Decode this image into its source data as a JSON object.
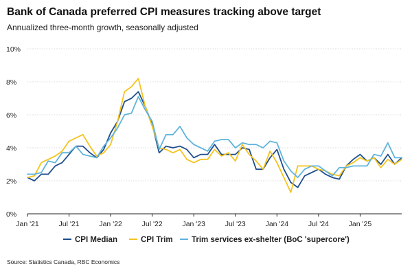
{
  "header": {
    "title": "Bank of Canada preferred CPI measures tracking above target",
    "subtitle": "Annualized three-month growth, seasonally adjusted"
  },
  "footer": {
    "source": "Source: Statistics Canada, RBC Economics"
  },
  "chart_data": {
    "type": "line",
    "title": "Bank of Canada preferred CPI measures tracking above target",
    "subtitle": "Annualized three-month growth, seasonally adjusted",
    "xlabel": "",
    "ylabel": "",
    "ylim": [
      0,
      10
    ],
    "yticks": [
      "0%",
      "2%",
      "4%",
      "6%",
      "8%",
      "10%"
    ],
    "ytick_values": [
      0,
      2,
      4,
      6,
      8,
      10
    ],
    "grid": true,
    "legend_position": "bottom",
    "x": [
      "Jan '21",
      "Feb '21",
      "Mar '21",
      "Apr '21",
      "May '21",
      "Jun '21",
      "Jul '21",
      "Aug '21",
      "Sep '21",
      "Oct '21",
      "Nov '21",
      "Dec '21",
      "Jan '22",
      "Feb '22",
      "Mar '22",
      "Apr '22",
      "May '22",
      "Jun '22",
      "Jul '22",
      "Aug '22",
      "Sep '22",
      "Oct '22",
      "Nov '22",
      "Dec '22",
      "Jan '23",
      "Feb '23",
      "Mar '23",
      "Apr '23",
      "May '23",
      "Jun '23",
      "Jul '23",
      "Aug '23",
      "Sep '23",
      "Oct '23",
      "Nov '23",
      "Dec '23",
      "Jan '24",
      "Feb '24",
      "Mar '24",
      "Apr '24",
      "May '24",
      "Jun '24",
      "Jul '24",
      "Aug '24",
      "Sep '24",
      "Oct '24",
      "Nov '24",
      "Dec '24",
      "Jan '25",
      "Feb '25",
      "Mar '25",
      "Apr '25",
      "May '25",
      "Jun '25",
      "Jul '25"
    ],
    "xtick_labels": [
      {
        "label": "Jan '21",
        "index": 0
      },
      {
        "label": "Jul '21",
        "index": 6
      },
      {
        "label": "Jan '22",
        "index": 12
      },
      {
        "label": "Jul '22",
        "index": 18
      },
      {
        "label": "Jan '23",
        "index": 24
      },
      {
        "label": "Jul '23",
        "index": 30
      },
      {
        "label": "Jan '24",
        "index": 36
      },
      {
        "label": "Jul '24",
        "index": 42
      },
      {
        "label": "Jan '25",
        "index": 48
      }
    ],
    "series": [
      {
        "name": "CPI Median",
        "color": "#1f4e8c",
        "values": [
          2.2,
          2.0,
          2.4,
          2.4,
          2.9,
          3.1,
          3.6,
          4.1,
          4.1,
          3.7,
          3.4,
          3.9,
          4.9,
          5.6,
          6.8,
          7.0,
          7.4,
          6.5,
          5.4,
          3.7,
          4.1,
          4.0,
          4.1,
          3.9,
          3.4,
          3.6,
          3.6,
          4.2,
          3.6,
          3.6,
          3.6,
          4.0,
          3.9,
          2.7,
          2.7,
          3.4,
          3.9,
          2.7,
          1.9,
          1.6,
          2.3,
          2.5,
          2.7,
          2.4,
          2.2,
          2.1,
          2.9,
          3.3,
          3.6,
          3.2,
          3.4,
          3.0,
          3.6,
          3.0,
          3.4
        ]
      },
      {
        "name": "CPI Trim",
        "color": "#f5c31d",
        "values": [
          2.2,
          2.3,
          3.1,
          3.3,
          3.5,
          3.8,
          4.4,
          4.6,
          4.8,
          4.1,
          3.5,
          3.7,
          4.2,
          5.6,
          7.4,
          7.7,
          8.2,
          6.5,
          5.3,
          4.0,
          3.9,
          3.7,
          3.9,
          3.3,
          3.1,
          3.3,
          3.3,
          3.9,
          3.5,
          3.7,
          3.2,
          4.2,
          3.6,
          3.2,
          2.7,
          3.8,
          3.1,
          2.2,
          1.3,
          2.9,
          2.9,
          2.9,
          2.7,
          2.6,
          2.4,
          2.3,
          2.9,
          3.1,
          3.4,
          3.2,
          3.4,
          2.8,
          3.3,
          3.0,
          3.3
        ]
      },
      {
        "name": "Trim services ex-shelter (BoC 'supercore')",
        "color": "#5fb4dc",
        "values": [
          2.4,
          2.4,
          2.5,
          3.2,
          3.1,
          3.7,
          3.7,
          4.1,
          3.6,
          3.5,
          3.4,
          4.1,
          4.6,
          5.2,
          6.0,
          6.1,
          7.1,
          6.3,
          5.6,
          3.9,
          4.8,
          4.8,
          5.3,
          4.6,
          4.2,
          4.0,
          3.8,
          4.4,
          4.5,
          4.5,
          4.0,
          4.3,
          4.2,
          4.2,
          4.0,
          4.4,
          4.3,
          3.2,
          2.6,
          2.2,
          2.7,
          2.9,
          2.9,
          2.6,
          2.3,
          2.8,
          2.8,
          2.9,
          2.9,
          2.9,
          3.6,
          3.5,
          4.3,
          3.4,
          3.4
        ]
      }
    ]
  }
}
